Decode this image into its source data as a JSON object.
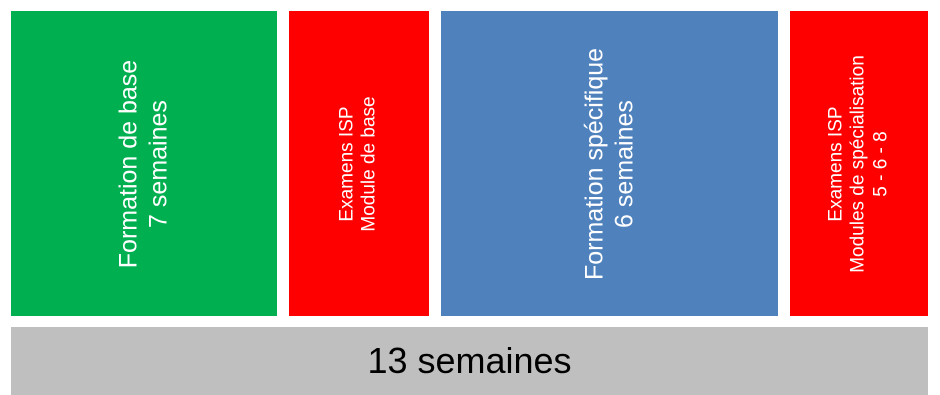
{
  "blocks": [
    {
      "lines": [
        "Formation de base",
        "7 semaines"
      ],
      "color": "#00b050"
    },
    {
      "lines": [
        "Examens ISP",
        "Module de base"
      ],
      "color": "#ff0000"
    },
    {
      "lines": [
        "Formation spécifique",
        "6 semaines"
      ],
      "color": "#4f81bd"
    },
    {
      "lines": [
        "Examens ISP",
        "Modules de spécialisation",
        "5 - 6 - 8"
      ],
      "color": "#ff0000"
    }
  ],
  "total": {
    "label": "13 semaines",
    "color": "#bfbfbf"
  }
}
